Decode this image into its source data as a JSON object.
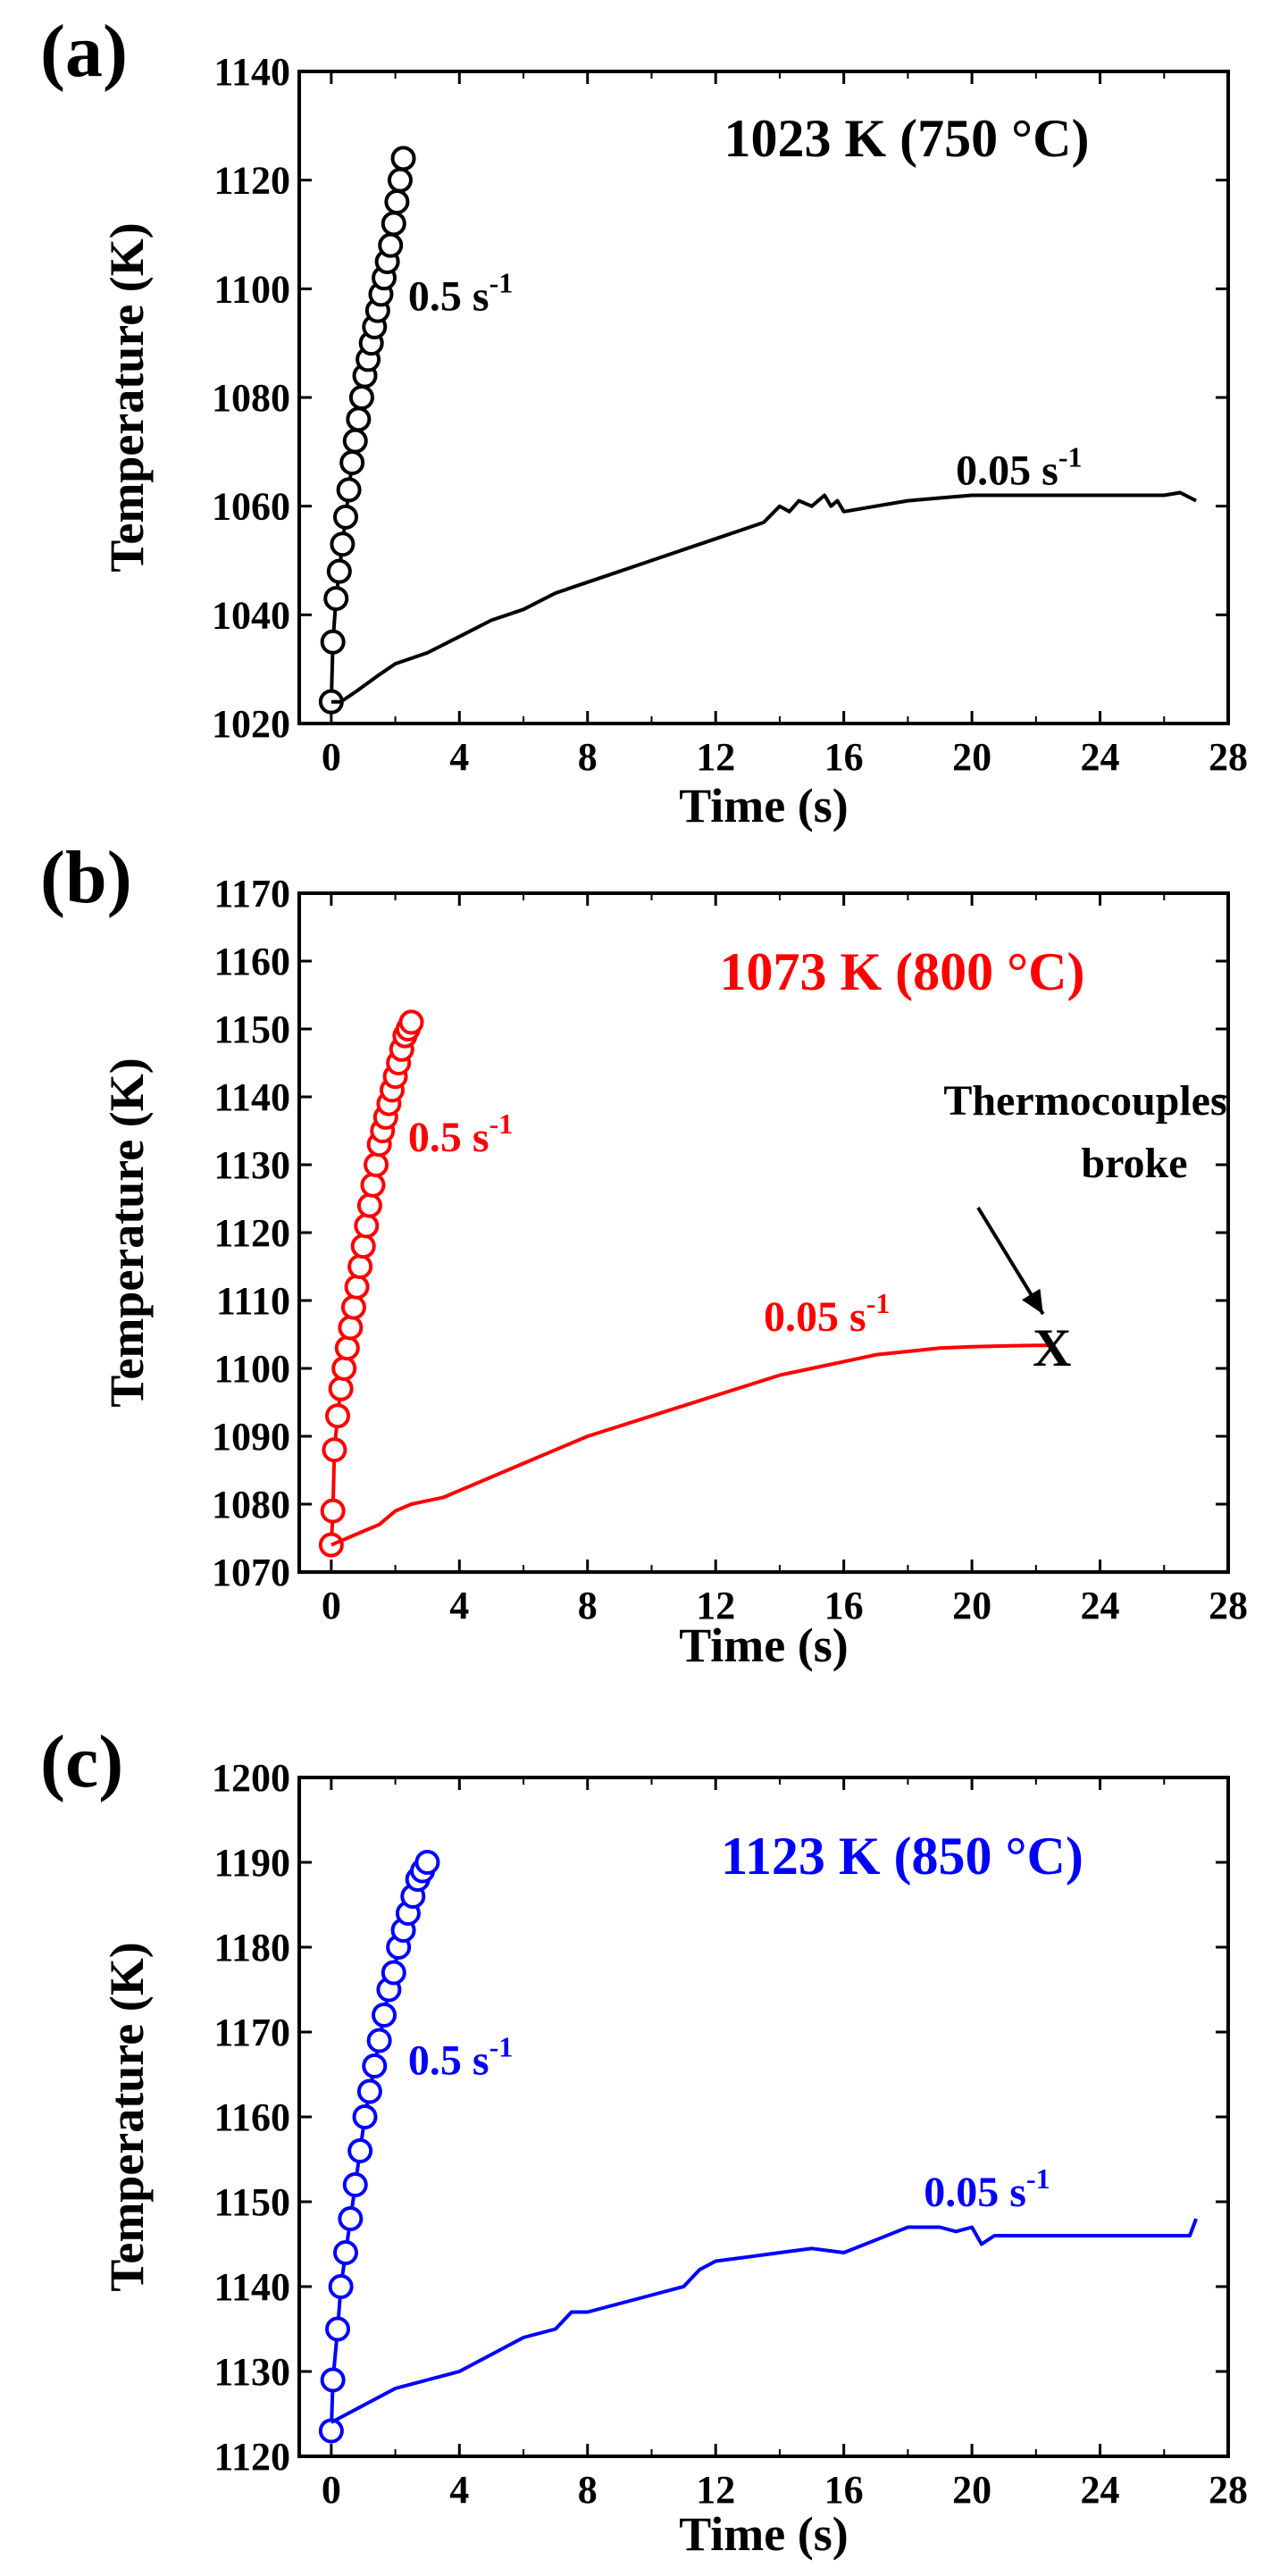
{
  "chart_data": [
    {
      "type": "line",
      "panel_label": "(a)",
      "annotation": "1023 K (750 °C)",
      "annotation_color": "#000000",
      "series_color": "#000000",
      "xlabel": "Time (s)",
      "ylabel": "Temperature (K)",
      "xlim": [
        -1,
        28
      ],
      "ylim": [
        1020,
        1140
      ],
      "xticks": [
        0,
        4,
        8,
        12,
        16,
        20,
        24,
        28
      ],
      "yticks": [
        1020,
        1040,
        1060,
        1080,
        1100,
        1120,
        1140
      ],
      "series": [
        {
          "name": "0.5 s-1",
          "rate_label": "0.5 s",
          "exp": "-1",
          "label_at": [
            2.4,
            1096
          ],
          "marker": "circle",
          "x": [
            0.0,
            0.05,
            0.15,
            0.25,
            0.35,
            0.45,
            0.55,
            0.65,
            0.75,
            0.85,
            0.95,
            1.05,
            1.15,
            1.25,
            1.35,
            1.45,
            1.55,
            1.65,
            1.75,
            1.85,
            1.95,
            2.05,
            2.15,
            2.25
          ],
          "y": [
            1024,
            1035,
            1043,
            1048,
            1053,
            1058,
            1063,
            1068,
            1072,
            1076,
            1080,
            1084,
            1087,
            1090,
            1093,
            1096,
            1099,
            1102,
            1105,
            1108,
            1112,
            1116,
            1120,
            1124
          ]
        },
        {
          "name": "0.05 s-1",
          "rate_label": "0.05 s",
          "exp": "-1",
          "label_at": [
            19.5,
            1064
          ],
          "marker": "none",
          "x": [
            0.0,
            0.3,
            0.8,
            1.5,
            2.0,
            3.0,
            4.0,
            5.0,
            6.0,
            7.0,
            8.0,
            9.0,
            10.0,
            11.0,
            12.0,
            13.0,
            13.5,
            14.0,
            14.3,
            14.6,
            15.0,
            15.4,
            15.6,
            15.8,
            16.0,
            17.0,
            18.0,
            19.0,
            20.0,
            21.0,
            22.0,
            23.0,
            24.0,
            25.0,
            26.0,
            26.5,
            27.0
          ],
          "y": [
            1024,
            1024,
            1026,
            1029,
            1031,
            1033,
            1036,
            1039,
            1041,
            1044,
            1046,
            1048,
            1050,
            1052,
            1054,
            1056,
            1057,
            1060,
            1059,
            1061,
            1060,
            1062,
            1060,
            1061,
            1059,
            1060,
            1061,
            1061.5,
            1062,
            1062,
            1062,
            1062,
            1062,
            1062,
            1062,
            1062.5,
            1061
          ]
        }
      ]
    },
    {
      "type": "line",
      "panel_label": "(b)",
      "annotation": "1073 K (800 °C)",
      "annotation_color": "#ff0000",
      "series_color": "#ff0000",
      "xlabel": "Time (s)",
      "ylabel": "Temperature (K)",
      "xlim": [
        -1,
        28
      ],
      "ylim": [
        1070,
        1170
      ],
      "xticks": [
        0,
        4,
        8,
        12,
        16,
        20,
        24,
        28
      ],
      "yticks": [
        1070,
        1080,
        1090,
        1100,
        1110,
        1120,
        1130,
        1140,
        1150,
        1160,
        1170
      ],
      "series": [
        {
          "name": "0.5 s-1",
          "rate_label": "0.5 s",
          "exp": "-1",
          "label_at": [
            2.4,
            1132
          ],
          "marker": "circle",
          "x": [
            0.0,
            0.05,
            0.1,
            0.2,
            0.3,
            0.4,
            0.5,
            0.6,
            0.7,
            0.8,
            0.9,
            1.0,
            1.1,
            1.2,
            1.3,
            1.4,
            1.5,
            1.6,
            1.7,
            1.8,
            1.9,
            2.0,
            2.1,
            2.2,
            2.3,
            2.4,
            2.5
          ],
          "y": [
            1074,
            1079,
            1088,
            1093,
            1097,
            1100,
            1103,
            1106,
            1109,
            1112,
            1115,
            1118,
            1121,
            1124,
            1127,
            1130,
            1133,
            1135,
            1137,
            1139,
            1141,
            1143,
            1145,
            1147,
            1149,
            1150,
            1151
          ]
        },
        {
          "name": "0.05 s-1",
          "rate_label": "0.05 s",
          "exp": "-1",
          "label_at": [
            13.5,
            1105.5
          ],
          "marker": "none",
          "x": [
            0.0,
            0.5,
            1.0,
            1.5,
            2.0,
            2.5,
            3.0,
            3.5,
            4.0,
            5.0,
            6.0,
            7.0,
            8.0,
            9.0,
            10.0,
            11.0,
            12.0,
            13.0,
            14.0,
            15.0,
            16.0,
            17.0,
            18.0,
            19.0,
            20.0,
            21.0,
            22.0,
            22.5
          ],
          "y": [
            1074,
            1075,
            1076,
            1077,
            1079,
            1080,
            1080.5,
            1081,
            1082,
            1084,
            1086,
            1088,
            1090,
            1091.5,
            1093,
            1094.5,
            1096,
            1097.5,
            1099,
            1100,
            1101,
            1102,
            1102.5,
            1103,
            1103.2,
            1103.3,
            1103.4,
            1103.4
          ]
        }
      ],
      "end_marker": {
        "symbol": "X",
        "x": 22.5,
        "y": 1103
      },
      "note_lines": [
        "Thermocouples",
        "broke"
      ]
    },
    {
      "type": "line",
      "panel_label": "(c)",
      "annotation": "1123 K (850 °C)",
      "annotation_color": "#0000ff",
      "series_color": "#0000ff",
      "xlabel": "Time (s)",
      "ylabel": "Temperature (K)",
      "xlim": [
        -1,
        28
      ],
      "ylim": [
        1120,
        1200
      ],
      "xticks": [
        0,
        4,
        8,
        12,
        16,
        20,
        24,
        28
      ],
      "yticks": [
        1120,
        1130,
        1140,
        1150,
        1160,
        1170,
        1180,
        1190,
        1200
      ],
      "series": [
        {
          "name": "0.5 s-1",
          "rate_label": "0.5 s",
          "exp": "-1",
          "label_at": [
            2.4,
            1165
          ],
          "marker": "circle",
          "x": [
            0.0,
            0.05,
            0.2,
            0.3,
            0.45,
            0.6,
            0.75,
            0.9,
            1.05,
            1.2,
            1.35,
            1.5,
            1.65,
            1.8,
            1.95,
            2.1,
            2.25,
            2.4,
            2.55,
            2.7,
            2.85,
            3.0
          ],
          "y": [
            1123,
            1129,
            1135,
            1140,
            1144,
            1148,
            1152,
            1156,
            1160,
            1163,
            1166,
            1169,
            1172,
            1175,
            1177,
            1180,
            1182,
            1184,
            1186,
            1188,
            1189,
            1190
          ]
        },
        {
          "name": "0.05 s-1",
          "rate_label": "0.05 s",
          "exp": "-1",
          "label_at": [
            18.5,
            1149.5
          ],
          "marker": "none",
          "x": [
            0.0,
            0.5,
            1.0,
            2.0,
            3.0,
            4.0,
            5.0,
            6.0,
            7.0,
            7.5,
            8.0,
            9.0,
            10.0,
            11.0,
            11.5,
            12.0,
            13.0,
            14.0,
            15.0,
            16.0,
            17.0,
            18.0,
            19.0,
            19.5,
            20.0,
            20.3,
            20.7,
            21.0,
            22.0,
            23.0,
            24.0,
            25.0,
            26.0,
            26.8,
            27.0
          ],
          "y": [
            1124,
            1125,
            1126,
            1128,
            1129,
            1130,
            1132,
            1134,
            1135,
            1137,
            1137,
            1138,
            1139,
            1140,
            1142,
            1143,
            1143.5,
            1144,
            1144.5,
            1144,
            1145.5,
            1147,
            1147,
            1146.5,
            1147,
            1145,
            1146,
            1146,
            1146,
            1146,
            1146,
            1146,
            1146,
            1146,
            1148
          ]
        }
      ]
    }
  ]
}
